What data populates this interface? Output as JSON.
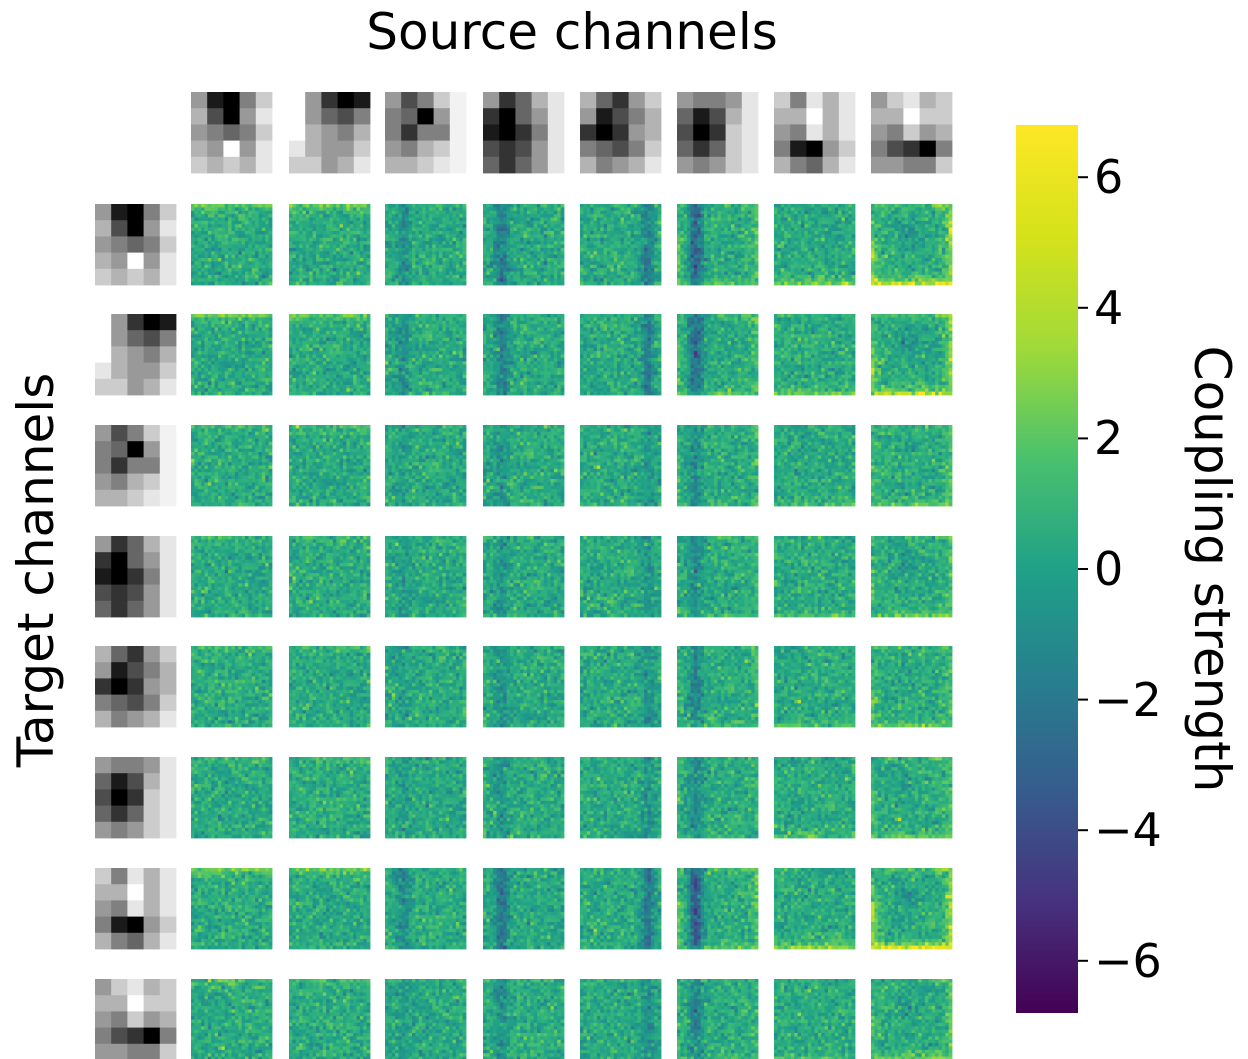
{
  "chart_data": {
    "type": "heatmap",
    "title": "Source channels",
    "ylabel": "Target channels",
    "colorbar": {
      "label": "Coupling strength",
      "colormap": "viridis",
      "range": [
        -6.8,
        6.8
      ],
      "ticks": [
        -6,
        -4,
        -2,
        0,
        2,
        4,
        6
      ],
      "tick_labels": [
        "−6",
        "−4",
        "−2",
        "0",
        "2",
        "4",
        "6"
      ]
    },
    "grid": {
      "rows": 8,
      "cols": 8,
      "cells_per_map": 24,
      "patch_pixels": 5
    },
    "source_patches": [
      [
        [
          0.6,
          0.1,
          0.0,
          0.5,
          0.8
        ],
        [
          0.7,
          0.3,
          0.0,
          0.6,
          0.9
        ],
        [
          0.6,
          0.5,
          0.4,
          0.5,
          0.8
        ],
        [
          0.7,
          0.6,
          1.0,
          0.6,
          0.9
        ],
        [
          0.8,
          0.7,
          0.8,
          0.7,
          0.9
        ]
      ],
      [
        [
          1.0,
          0.6,
          0.2,
          0.0,
          0.1
        ],
        [
          1.0,
          0.6,
          0.4,
          0.3,
          0.5
        ],
        [
          1.0,
          0.7,
          0.6,
          0.5,
          0.7
        ],
        [
          0.9,
          0.7,
          0.6,
          0.6,
          0.8
        ],
        [
          0.8,
          0.8,
          0.6,
          0.7,
          0.9
        ]
      ],
      [
        [
          0.6,
          0.3,
          0.5,
          0.8,
          0.95
        ],
        [
          0.5,
          0.4,
          0.0,
          0.6,
          0.95
        ],
        [
          0.5,
          0.2,
          0.5,
          0.5,
          0.95
        ],
        [
          0.6,
          0.5,
          0.7,
          0.8,
          0.95
        ],
        [
          0.7,
          0.7,
          0.8,
          0.9,
          0.95
        ]
      ],
      [
        [
          0.6,
          0.2,
          0.4,
          0.7,
          0.9
        ],
        [
          0.2,
          0.0,
          0.4,
          0.6,
          0.9
        ],
        [
          0.1,
          0.0,
          0.2,
          0.5,
          0.9
        ],
        [
          0.3,
          0.2,
          0.3,
          0.6,
          0.9
        ],
        [
          0.4,
          0.2,
          0.4,
          0.6,
          0.9
        ]
      ],
      [
        [
          0.7,
          0.4,
          0.2,
          0.6,
          0.8
        ],
        [
          0.6,
          0.1,
          0.3,
          0.5,
          0.7
        ],
        [
          0.2,
          0.0,
          0.2,
          0.6,
          0.7
        ],
        [
          0.5,
          0.4,
          0.3,
          0.5,
          0.8
        ],
        [
          0.7,
          0.5,
          0.6,
          0.7,
          0.9
        ]
      ],
      [
        [
          0.6,
          0.5,
          0.5,
          0.6,
          0.9
        ],
        [
          0.4,
          0.1,
          0.3,
          0.7,
          0.9
        ],
        [
          0.3,
          0.0,
          0.2,
          0.8,
          0.9
        ],
        [
          0.4,
          0.2,
          0.4,
          0.8,
          0.9
        ],
        [
          0.6,
          0.5,
          0.6,
          0.8,
          0.9
        ]
      ],
      [
        [
          0.8,
          0.5,
          0.9,
          0.7,
          0.9
        ],
        [
          0.7,
          0.7,
          1.0,
          0.7,
          0.9
        ],
        [
          0.6,
          0.5,
          0.9,
          0.7,
          0.9
        ],
        [
          0.5,
          0.1,
          0.0,
          0.6,
          0.8
        ],
        [
          0.7,
          0.5,
          0.4,
          0.7,
          0.9
        ]
      ],
      [
        [
          0.6,
          0.8,
          0.9,
          0.7,
          0.8
        ],
        [
          0.7,
          0.7,
          1.0,
          0.8,
          0.8
        ],
        [
          0.6,
          0.5,
          0.8,
          0.6,
          0.7
        ],
        [
          0.5,
          0.3,
          0.2,
          0.0,
          0.5
        ],
        [
          0.6,
          0.6,
          0.5,
          0.5,
          0.8
        ]
      ]
    ],
    "target_patches": [
      [
        [
          0.6,
          0.1,
          0.0,
          0.5,
          0.8
        ],
        [
          0.7,
          0.3,
          0.0,
          0.6,
          0.9
        ],
        [
          0.6,
          0.5,
          0.4,
          0.5,
          0.8
        ],
        [
          0.7,
          0.6,
          1.0,
          0.6,
          0.9
        ],
        [
          0.8,
          0.7,
          0.8,
          0.7,
          0.9
        ]
      ],
      [
        [
          1.0,
          0.6,
          0.2,
          0.0,
          0.1
        ],
        [
          1.0,
          0.6,
          0.4,
          0.3,
          0.5
        ],
        [
          1.0,
          0.7,
          0.6,
          0.5,
          0.7
        ],
        [
          0.9,
          0.7,
          0.6,
          0.6,
          0.8
        ],
        [
          0.8,
          0.8,
          0.6,
          0.7,
          0.9
        ]
      ],
      [
        [
          0.6,
          0.3,
          0.5,
          0.8,
          0.95
        ],
        [
          0.5,
          0.4,
          0.0,
          0.6,
          0.95
        ],
        [
          0.5,
          0.2,
          0.5,
          0.5,
          0.95
        ],
        [
          0.6,
          0.5,
          0.7,
          0.8,
          0.95
        ],
        [
          0.7,
          0.7,
          0.8,
          0.9,
          0.95
        ]
      ],
      [
        [
          0.6,
          0.2,
          0.4,
          0.7,
          0.9
        ],
        [
          0.2,
          0.0,
          0.4,
          0.6,
          0.9
        ],
        [
          0.1,
          0.0,
          0.2,
          0.5,
          0.9
        ],
        [
          0.3,
          0.2,
          0.3,
          0.6,
          0.9
        ],
        [
          0.4,
          0.2,
          0.4,
          0.6,
          0.9
        ]
      ],
      [
        [
          0.7,
          0.4,
          0.2,
          0.6,
          0.8
        ],
        [
          0.6,
          0.1,
          0.3,
          0.5,
          0.7
        ],
        [
          0.2,
          0.0,
          0.2,
          0.6,
          0.7
        ],
        [
          0.5,
          0.4,
          0.3,
          0.5,
          0.8
        ],
        [
          0.7,
          0.5,
          0.6,
          0.7,
          0.9
        ]
      ],
      [
        [
          0.6,
          0.5,
          0.5,
          0.6,
          0.9
        ],
        [
          0.4,
          0.1,
          0.3,
          0.7,
          0.9
        ],
        [
          0.3,
          0.0,
          0.2,
          0.8,
          0.9
        ],
        [
          0.4,
          0.2,
          0.4,
          0.8,
          0.9
        ],
        [
          0.6,
          0.5,
          0.6,
          0.8,
          0.9
        ]
      ],
      [
        [
          0.8,
          0.5,
          0.9,
          0.7,
          0.9
        ],
        [
          0.7,
          0.7,
          1.0,
          0.7,
          0.9
        ],
        [
          0.6,
          0.5,
          0.9,
          0.7,
          0.9
        ],
        [
          0.5,
          0.1,
          0.0,
          0.6,
          0.8
        ],
        [
          0.7,
          0.5,
          0.4,
          0.7,
          0.9
        ]
      ],
      [
        [
          0.6,
          0.8,
          0.9,
          0.7,
          0.8
        ],
        [
          0.7,
          0.7,
          1.0,
          0.8,
          0.8
        ],
        [
          0.6,
          0.5,
          0.8,
          0.6,
          0.7
        ],
        [
          0.5,
          0.3,
          0.2,
          0.0,
          0.5
        ],
        [
          0.6,
          0.6,
          0.5,
          0.5,
          0.8
        ]
      ]
    ],
    "column_features": {
      "top_band": [
        1.5,
        1.5,
        0,
        0,
        0,
        0,
        0,
        0
      ],
      "left_stripe": [
        0,
        0,
        -1.2,
        -2.0,
        0,
        -3.0,
        0,
        0
      ],
      "right_stripe": [
        0,
        0,
        0,
        0,
        -2.0,
        0,
        0,
        0
      ],
      "bottom_band": [
        0,
        0,
        0,
        0,
        0,
        0,
        1.8,
        0.8
      ],
      "edge_ring": [
        0,
        0,
        0,
        0,
        0,
        1.2,
        0,
        2.2
      ],
      "center_dip": [
        0,
        0,
        0,
        0,
        0,
        0,
        0,
        -1.2
      ]
    },
    "row_scale": [
      1.3,
      1.2,
      0.55,
      0.6,
      0.65,
      0.6,
      1.5,
      0.7
    ],
    "baseline_value": 1.5,
    "noise_std": 0.9
  }
}
